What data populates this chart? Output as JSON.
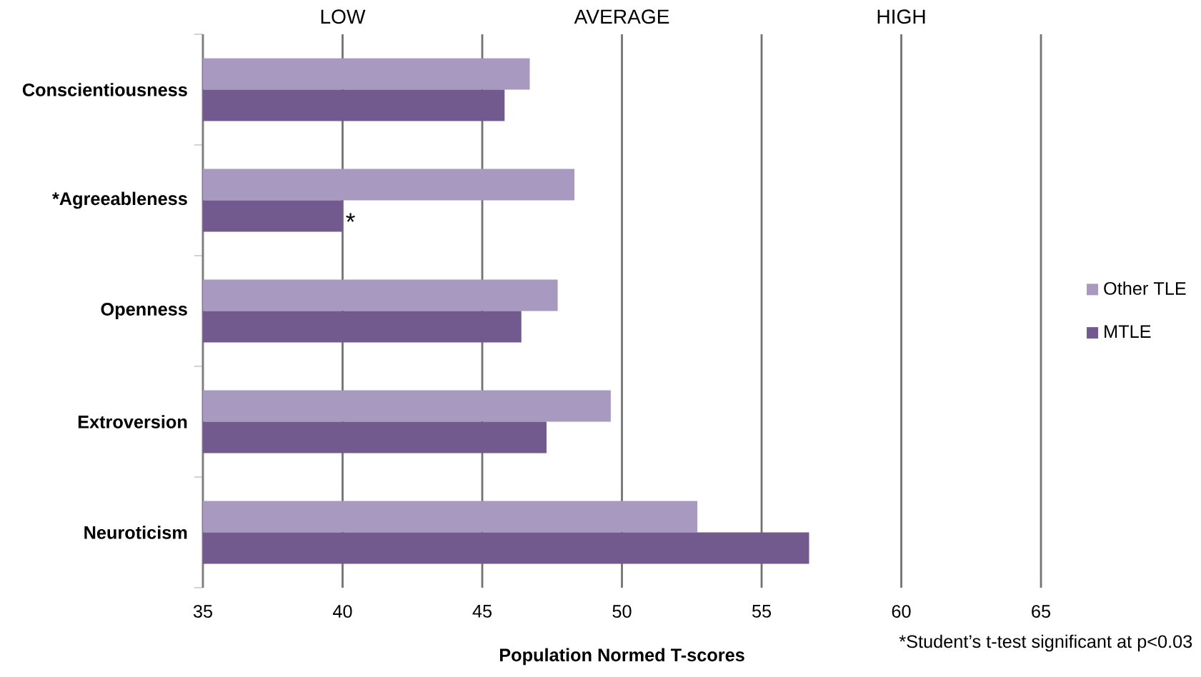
{
  "chart_data": {
    "type": "bar",
    "orientation": "horizontal",
    "categories": [
      "Conscientiousness",
      "*Agreeableness",
      "Openness",
      "Extroversion",
      "Neuroticism"
    ],
    "series": [
      {
        "name": "Other TLE",
        "color": "#a899c0",
        "values": [
          46.7,
          48.3,
          47.7,
          49.6,
          52.7
        ]
      },
      {
        "name": "MTLE",
        "color": "#725a8e",
        "values": [
          45.8,
          40.0,
          46.4,
          47.3,
          56.7
        ]
      }
    ],
    "xlabel": "Population Normed T-scores",
    "xlim": [
      35,
      65
    ],
    "xticks": [
      35,
      40,
      45,
      50,
      55,
      60,
      65
    ],
    "grid": "x",
    "legend": "right",
    "annotations": [
      "LOW",
      "AVERAGE",
      "HIGH",
      {
        "text": "*",
        "x": 40.0,
        "y": "*Agreeableness"
      },
      "*Student’s t-test significant at p<0.03"
    ]
  }
}
